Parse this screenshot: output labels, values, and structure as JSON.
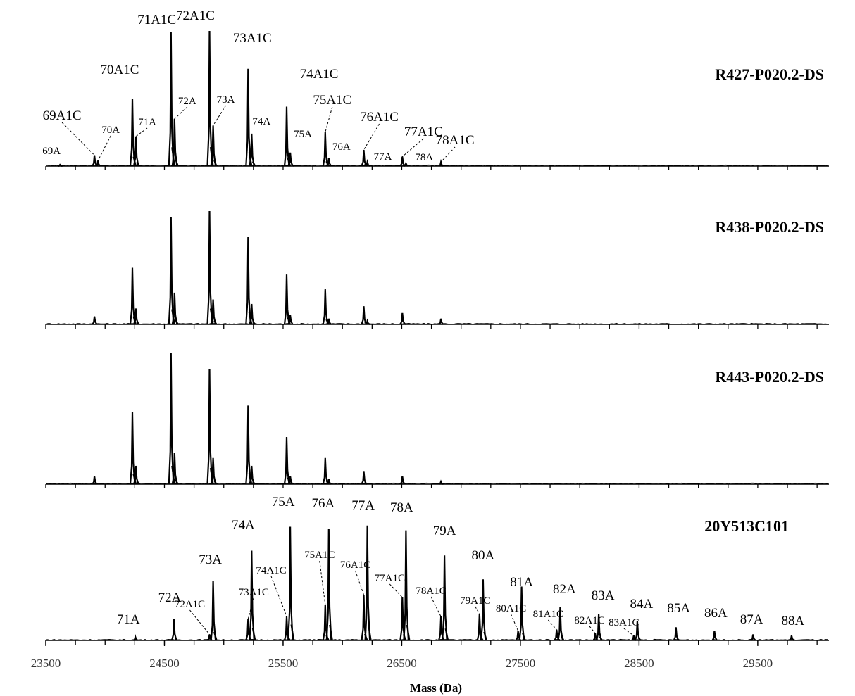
{
  "chart_data": {
    "type": "line",
    "xlabel": "Mass (Da)",
    "xlim": [
      23500,
      30100
    ],
    "x_ticks": [
      23500,
      24500,
      25500,
      26500,
      27500,
      28500,
      29500
    ],
    "grid": false,
    "panels": [
      {
        "title": "R427-P020.2-DS",
        "peaks": [
          {
            "mass": 23620,
            "height": 0.01,
            "label": "69A",
            "size": 15
          },
          {
            "mass": 23910,
            "height": 0.08,
            "label": "69A1C",
            "size": 19
          },
          {
            "mass": 23940,
            "height": 0.04,
            "label": "70A",
            "size": 15
          },
          {
            "mass": 24230,
            "height": 0.5,
            "label": "70A1C",
            "size": 19
          },
          {
            "mass": 24260,
            "height": 0.22,
            "label": "71A",
            "size": 15
          },
          {
            "mass": 24555,
            "height": 0.99,
            "label": "71A1C",
            "size": 19
          },
          {
            "mass": 24585,
            "height": 0.35,
            "label": "72A",
            "size": 15
          },
          {
            "mass": 24880,
            "height": 1.0,
            "label": "72A1C",
            "size": 19
          },
          {
            "mass": 24910,
            "height": 0.3,
            "label": "73A",
            "size": 15
          },
          {
            "mass": 25205,
            "height": 0.72,
            "label": "73A1C",
            "size": 19
          },
          {
            "mass": 25235,
            "height": 0.24,
            "label": "74A",
            "size": 15
          },
          {
            "mass": 25530,
            "height": 0.44,
            "label": "74A1C",
            "size": 19
          },
          {
            "mass": 25560,
            "height": 0.1,
            "label": "75A",
            "size": 15
          },
          {
            "mass": 25855,
            "height": 0.25,
            "label": "75A1C",
            "size": 19
          },
          {
            "mass": 25885,
            "height": 0.06,
            "label": "76A",
            "size": 15
          },
          {
            "mass": 26180,
            "height": 0.12,
            "label": "76A1C",
            "size": 19
          },
          {
            "mass": 26210,
            "height": 0.03,
            "label": "77A",
            "size": 15
          },
          {
            "mass": 26505,
            "height": 0.07,
            "label": "77A1C",
            "size": 19
          },
          {
            "mass": 26535,
            "height": 0.02,
            "label": "78A",
            "size": 15
          },
          {
            "mass": 26830,
            "height": 0.03,
            "label": "78A1C",
            "size": 19
          }
        ]
      },
      {
        "title": "R438-P020.2-DS",
        "peaks": [
          {
            "mass": 23910,
            "height": 0.07
          },
          {
            "mass": 24230,
            "height": 0.5
          },
          {
            "mass": 24260,
            "height": 0.14
          },
          {
            "mass": 24555,
            "height": 0.95
          },
          {
            "mass": 24585,
            "height": 0.28
          },
          {
            "mass": 24880,
            "height": 1.0
          },
          {
            "mass": 24910,
            "height": 0.22
          },
          {
            "mass": 25205,
            "height": 0.77
          },
          {
            "mass": 25235,
            "height": 0.18
          },
          {
            "mass": 25530,
            "height": 0.44
          },
          {
            "mass": 25560,
            "height": 0.08
          },
          {
            "mass": 25855,
            "height": 0.31
          },
          {
            "mass": 25885,
            "height": 0.05
          },
          {
            "mass": 26180,
            "height": 0.16
          },
          {
            "mass": 26210,
            "height": 0.03
          },
          {
            "mass": 26505,
            "height": 0.1
          },
          {
            "mass": 26830,
            "height": 0.05
          }
        ]
      },
      {
        "title": "R443-P020.2-DS",
        "peaks": [
          {
            "mass": 23910,
            "height": 0.06
          },
          {
            "mass": 24230,
            "height": 0.55
          },
          {
            "mass": 24260,
            "height": 0.14
          },
          {
            "mass": 24555,
            "height": 1.0
          },
          {
            "mass": 24585,
            "height": 0.24
          },
          {
            "mass": 24880,
            "height": 0.88
          },
          {
            "mass": 24910,
            "height": 0.2
          },
          {
            "mass": 25205,
            "height": 0.6
          },
          {
            "mass": 25235,
            "height": 0.14
          },
          {
            "mass": 25530,
            "height": 0.36
          },
          {
            "mass": 25560,
            "height": 0.06
          },
          {
            "mass": 25855,
            "height": 0.2
          },
          {
            "mass": 25885,
            "height": 0.04
          },
          {
            "mass": 26180,
            "height": 0.1
          },
          {
            "mass": 26505,
            "height": 0.06
          },
          {
            "mass": 26830,
            "height": 0.02
          }
        ]
      },
      {
        "title": "20Y513C101",
        "peaks": [
          {
            "mass": 24255,
            "height": 0.03,
            "label": "71A",
            "size": 19
          },
          {
            "mass": 24580,
            "height": 0.18,
            "label": "72A",
            "size": 19
          },
          {
            "mass": 24880,
            "height": 0.05,
            "label": "72A1C",
            "size": 15
          },
          {
            "mass": 24910,
            "height": 0.5,
            "label": "73A",
            "size": 19
          },
          {
            "mass": 25205,
            "height": 0.18,
            "label": "73A1C",
            "size": 15
          },
          {
            "mass": 25235,
            "height": 0.75,
            "label": "74A",
            "size": 19
          },
          {
            "mass": 25530,
            "height": 0.2,
            "label": "74A1C",
            "size": 15
          },
          {
            "mass": 25560,
            "height": 0.95,
            "label": "75A",
            "size": 19
          },
          {
            "mass": 25855,
            "height": 0.3,
            "label": "75A1C",
            "size": 15
          },
          {
            "mass": 25885,
            "height": 0.93,
            "label": "76A",
            "size": 19
          },
          {
            "mass": 26180,
            "height": 0.38,
            "label": "76A1C",
            "size": 15
          },
          {
            "mass": 26210,
            "height": 0.96,
            "label": "77A",
            "size": 19
          },
          {
            "mass": 26505,
            "height": 0.36,
            "label": "77A1C",
            "size": 15
          },
          {
            "mass": 26535,
            "height": 0.92,
            "label": "78A",
            "size": 19
          },
          {
            "mass": 26830,
            "height": 0.2,
            "label": "78A1C",
            "size": 15
          },
          {
            "mass": 26860,
            "height": 0.71,
            "label": "79A",
            "size": 19
          },
          {
            "mass": 27155,
            "height": 0.22,
            "label": "79A1C",
            "size": 15
          },
          {
            "mass": 27185,
            "height": 0.51,
            "label": "80A",
            "size": 19
          },
          {
            "mass": 27480,
            "height": 0.08,
            "label": "80A1C",
            "size": 15
          },
          {
            "mass": 27510,
            "height": 0.45,
            "label": "81A",
            "size": 19
          },
          {
            "mass": 27805,
            "height": 0.09,
            "label": "81A1C",
            "size": 15
          },
          {
            "mass": 27835,
            "height": 0.28,
            "label": "82A",
            "size": 19
          },
          {
            "mass": 28130,
            "height": 0.06,
            "label": "82A1C",
            "size": 15
          },
          {
            "mass": 28160,
            "height": 0.22,
            "label": "83A",
            "size": 19
          },
          {
            "mass": 28455,
            "height": 0.04,
            "label": "83A1C",
            "size": 15
          },
          {
            "mass": 28485,
            "height": 0.16,
            "label": "84A",
            "size": 19
          },
          {
            "mass": 28810,
            "height": 0.11,
            "label": "85A",
            "size": 19
          },
          {
            "mass": 29135,
            "height": 0.08,
            "label": "86A",
            "size": 19
          },
          {
            "mass": 29460,
            "height": 0.05,
            "label": "87A",
            "size": 19
          },
          {
            "mass": 29785,
            "height": 0.04,
            "label": "88A",
            "size": 19
          }
        ]
      }
    ]
  }
}
